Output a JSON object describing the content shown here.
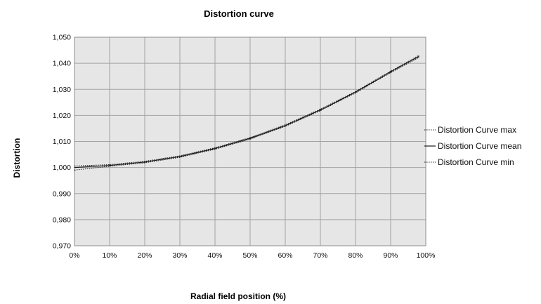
{
  "chart_data": {
    "type": "line",
    "title": "Distortion curve",
    "xlabel": "Radial field position (%)",
    "ylabel": "Distortion",
    "xlim": [
      0,
      100
    ],
    "ylim": [
      0.97,
      1.05
    ],
    "x_ticks": [
      "0%",
      "10%",
      "20%",
      "30%",
      "40%",
      "50%",
      "60%",
      "70%",
      "80%",
      "90%",
      "100%"
    ],
    "y_ticks": [
      "0,970",
      "0,980",
      "0,990",
      "1,000",
      "1,010",
      "1,020",
      "1,030",
      "1,040",
      "1,050"
    ],
    "grid": true,
    "legend_position": "right",
    "plot_background": "#e6e6e6",
    "series": [
      {
        "name": "Distortion Curve max",
        "style": "dotted",
        "x": [
          0,
          10,
          20,
          30,
          40,
          50,
          60,
          70,
          80,
          90,
          98
        ],
        "y": [
          1.0006,
          1.0011,
          1.0024,
          1.0045,
          1.0076,
          1.0115,
          1.0164,
          1.0224,
          1.0292,
          1.037,
          1.043
        ]
      },
      {
        "name": "Distortion Curve mean",
        "style": "solid",
        "x": [
          0,
          10,
          20,
          30,
          40,
          50,
          60,
          70,
          80,
          90,
          98
        ],
        "y": [
          1.0,
          1.0008,
          1.0021,
          1.0042,
          1.0073,
          1.0112,
          1.0161,
          1.0221,
          1.0289,
          1.0367,
          1.0426
        ]
      },
      {
        "name": "Distortion Curve min",
        "style": "dotted",
        "x": [
          0,
          10,
          20,
          30,
          40,
          50,
          60,
          70,
          80,
          90,
          98
        ],
        "y": [
          0.999,
          1.0005,
          1.0018,
          1.0039,
          1.007,
          1.0109,
          1.0158,
          1.0218,
          1.0286,
          1.0364,
          1.0422
        ]
      }
    ]
  }
}
